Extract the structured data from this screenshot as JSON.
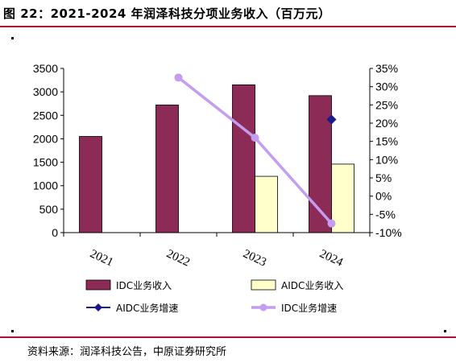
{
  "header": {
    "title": "图 22：2021-2024 年润泽科技分项业务收入（百万元）"
  },
  "footer": {
    "source": "资料来源：润泽科技公告，中原证券研究所"
  },
  "colors": {
    "rule": "#a8142f",
    "idc_bar": "#8b2b56",
    "aidc_bar": "#ffffcc",
    "aidc_growth": "#1a1a8c",
    "idc_growth": "#c49cf0"
  },
  "chart_data": {
    "type": "bar",
    "categories": [
      "2021",
      "2022",
      "2023",
      "2024"
    ],
    "ylim": [
      0,
      3500
    ],
    "yticks": [
      "0",
      "500",
      "1000",
      "1500",
      "2000",
      "2500",
      "3000",
      "3500"
    ],
    "y2lim": [
      -10,
      35
    ],
    "y2ticks": [
      "-10%",
      "-5%",
      "0%",
      "5%",
      "10%",
      "15%",
      "20%",
      "25%",
      "30%",
      "35%"
    ],
    "series": [
      {
        "name": "IDC业务收入",
        "kind": "bar",
        "axis": "left",
        "values": [
          2050,
          2720,
          3150,
          2920
        ]
      },
      {
        "name": "AIDC业务收入",
        "kind": "bar",
        "axis": "left",
        "values": [
          null,
          null,
          1200,
          1460
        ]
      },
      {
        "name": "AIDC业务增速",
        "kind": "marker",
        "axis": "right",
        "values": [
          null,
          null,
          null,
          21
        ]
      },
      {
        "name": "IDC业务增速",
        "kind": "line",
        "axis": "right",
        "values": [
          null,
          32.5,
          16,
          -7.5
        ]
      }
    ]
  }
}
